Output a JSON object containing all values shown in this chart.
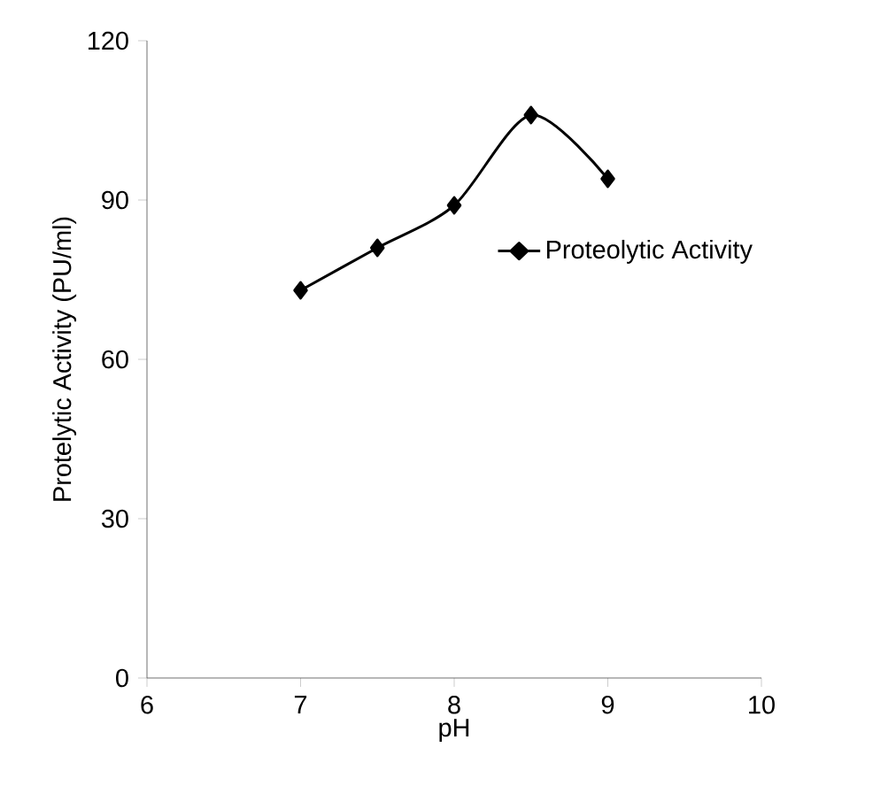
{
  "chart_data": {
    "type": "line",
    "xlabel": "pH",
    "ylabel": "Protelytic Activity (PU/ml)",
    "x": [
      7,
      7.5,
      8,
      8.5,
      9
    ],
    "series": [
      {
        "name": "Proteolytic Activity",
        "color": "#000000",
        "values": [
          73,
          81,
          89,
          106,
          94
        ]
      }
    ],
    "xlim": [
      6,
      10
    ],
    "xticks": [
      6,
      7,
      8,
      9,
      10
    ],
    "ylim": [
      0,
      120
    ],
    "yticks": [
      0,
      30,
      60,
      90,
      120
    ],
    "grid": false,
    "legend": "right",
    "marker": "diamond",
    "line_style": "solid"
  }
}
